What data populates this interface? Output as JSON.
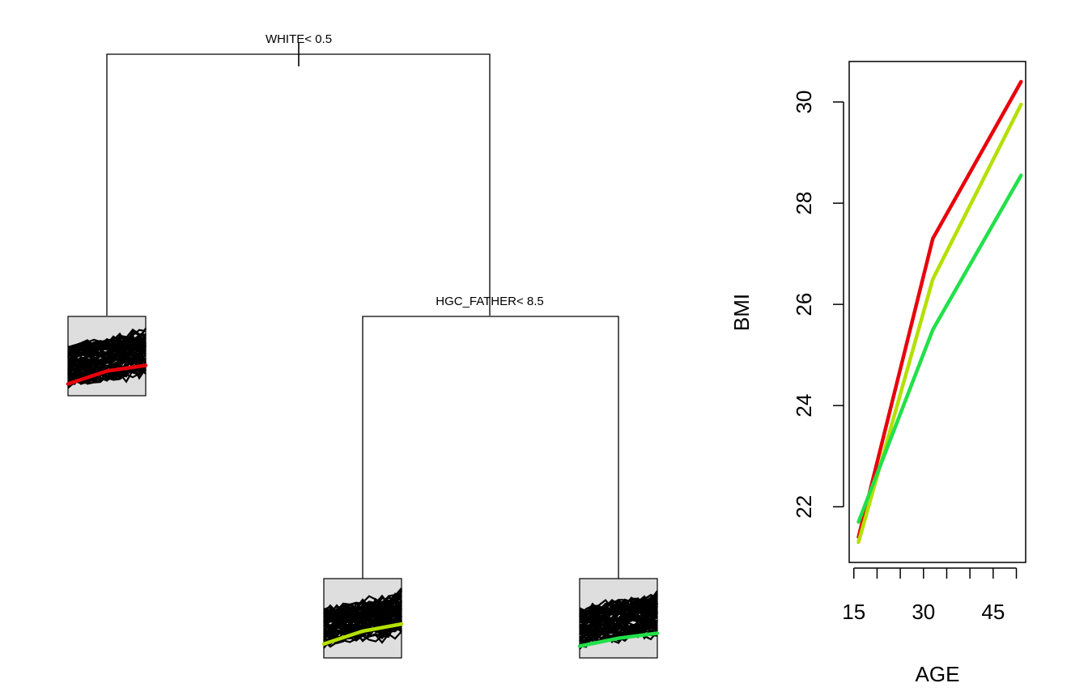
{
  "tree": {
    "splits": [
      {
        "label": "WHITE< 0.5"
      },
      {
        "label": "HGC_FATHER< 8.5"
      }
    ],
    "leaves": [
      {
        "color": "#e8000b",
        "curve": [
          0.12,
          0.3,
          0.38
        ]
      },
      {
        "color": "#b4e000",
        "curve": [
          0.15,
          0.33,
          0.43
        ]
      },
      {
        "color": "#22e04a",
        "curve": [
          0.12,
          0.23,
          0.3
        ]
      }
    ]
  },
  "chart_data": {
    "type": "line",
    "xlabel": "AGE",
    "ylabel": "BMI",
    "xlim": [
      14,
      52
    ],
    "ylim": [
      20.9,
      30.8
    ],
    "xticks": [
      15,
      20,
      25,
      30,
      35,
      40,
      45,
      50
    ],
    "xtick_labels": [
      "15",
      "30",
      "45"
    ],
    "xtick_label_values": [
      15,
      30,
      45
    ],
    "yticks": [
      22,
      24,
      26,
      28,
      30
    ],
    "ytick_labels": [
      "22",
      "24",
      "26",
      "28",
      "30"
    ],
    "x": [
      16,
      32,
      51
    ],
    "series": [
      {
        "color": "#e8000b",
        "values": [
          21.4,
          27.3,
          30.4
        ]
      },
      {
        "color": "#b4e000",
        "values": [
          21.3,
          26.5,
          29.95
        ]
      },
      {
        "color": "#22e04a",
        "values": [
          21.7,
          25.5,
          28.55
        ]
      }
    ]
  }
}
